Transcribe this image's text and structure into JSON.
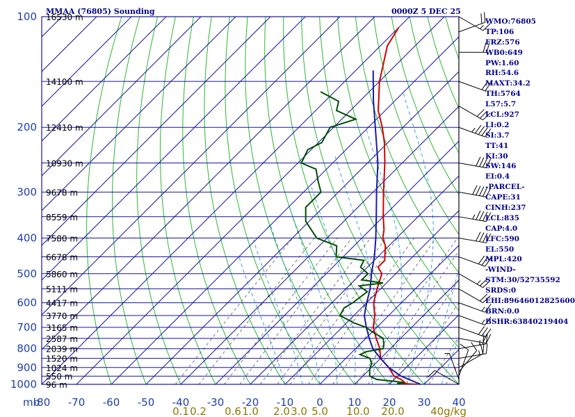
{
  "chart_data": {
    "type": "line",
    "title": "MMAA (76805) Sounding",
    "valid_time": "0000Z  5 DEC 25",
    "ylabel": "mb",
    "pressure_ticks": [
      100,
      200,
      300,
      400,
      500,
      600,
      700,
      800,
      900,
      1000
    ],
    "xlim": [
      -80,
      40
    ],
    "ylim": [
      1000,
      100
    ],
    "temperature_ticks": [
      "-80",
      "-70",
      "-60",
      "-50",
      "-40",
      "-30",
      "-20",
      "-10",
      "0",
      "10",
      "20",
      "30",
      "40"
    ],
    "mixing_ratio_ticks": [
      {
        "label": "0.1",
        "t": -40
      },
      {
        "label": "0.2",
        "t": -35
      },
      {
        "label": "0.6",
        "t": -25
      },
      {
        "label": "1.0",
        "t": -20
      },
      {
        "label": "2.0",
        "t": -11
      },
      {
        "label": "3.0",
        "t": -6
      },
      {
        "label": "5.0",
        "t": 0
      },
      {
        "label": "10.0",
        "t": 11
      },
      {
        "label": "20.0",
        "t": 21
      },
      {
        "label": "40g/kg",
        "t": 37
      }
    ],
    "height_labels": [
      {
        "text": "16530 m",
        "p": 100
      },
      {
        "text": "14100 m",
        "p": 150
      },
      {
        "text": "12410 m",
        "p": 200
      },
      {
        "text": "10930 m",
        "p": 250
      },
      {
        "text": "9678 m",
        "p": 300
      },
      {
        "text": "8559 m",
        "p": 350
      },
      {
        "text": "7580 m",
        "p": 400
      },
      {
        "text": "6678 m",
        "p": 450
      },
      {
        "text": "5860 m",
        "p": 500
      },
      {
        "text": "5111 m",
        "p": 550
      },
      {
        "text": "4417 m",
        "p": 600
      },
      {
        "text": "3770 m",
        "p": 650
      },
      {
        "text": "3165 m",
        "p": 700
      },
      {
        "text": "2587 m",
        "p": 750
      },
      {
        "text": "2039 m",
        "p": 800
      },
      {
        "text": "1520 m",
        "p": 850
      },
      {
        "text": "1024 m",
        "p": 900
      },
      {
        "text": "550 m",
        "p": 950
      },
      {
        "text": "96 m",
        "p": 1000
      }
    ],
    "series": [
      {
        "name": "",
        "color": "#cc0000",
        "points": [
          [
            28,
            1000
          ],
          [
            23,
            995
          ],
          [
            24,
            990
          ],
          [
            22,
            970
          ],
          [
            19,
            950
          ],
          [
            15,
            900
          ],
          [
            10,
            850
          ],
          [
            7,
            800
          ],
          [
            3,
            750
          ],
          [
            -1,
            700
          ],
          [
            -4,
            650
          ],
          [
            -8,
            600
          ],
          [
            -11,
            550
          ],
          [
            -14,
            500
          ],
          [
            -17,
            480
          ],
          [
            -17,
            460
          ],
          [
            -18,
            450
          ],
          [
            -21,
            420
          ],
          [
            -24,
            400
          ],
          [
            -26,
            380
          ],
          [
            -30,
            350
          ],
          [
            -37,
            300
          ],
          [
            -45,
            250
          ],
          [
            -51,
            220
          ],
          [
            -56,
            200
          ],
          [
            -62,
            180
          ],
          [
            -70,
            150
          ],
          [
            -78,
            120
          ],
          [
            -80,
            107
          ]
        ]
      },
      {
        "name": "",
        "color": "#1a1aa0",
        "points": [
          [
            29,
            1000
          ],
          [
            21,
            950
          ],
          [
            15,
            900
          ],
          [
            10,
            850
          ],
          [
            5,
            800
          ],
          [
            1,
            750
          ],
          [
            -3,
            700
          ],
          [
            -7,
            650
          ],
          [
            -10,
            600
          ],
          [
            -13,
            550
          ],
          [
            -17,
            500
          ],
          [
            -21,
            450
          ],
          [
            -26,
            400
          ],
          [
            -32,
            350
          ],
          [
            -39,
            300
          ],
          [
            -47,
            250
          ],
          [
            -58,
            200
          ],
          [
            -66,
            170
          ],
          [
            -75,
            140
          ]
        ]
      },
      {
        "name": "",
        "color": "#004d00",
        "points": [
          [
            23,
            1000
          ],
          [
            22,
            995
          ],
          [
            24,
            990
          ],
          [
            22,
            985
          ],
          [
            20,
            980
          ],
          [
            15,
            970
          ],
          [
            12,
            950
          ],
          [
            10,
            910
          ],
          [
            9,
            880
          ],
          [
            7,
            850
          ],
          [
            3,
            830
          ],
          [
            4,
            815
          ],
          [
            8,
            800
          ],
          [
            7,
            780
          ],
          [
            5,
            750
          ],
          [
            0,
            720
          ],
          [
            -3,
            700
          ],
          [
            -8,
            680
          ],
          [
            -14,
            650
          ],
          [
            -15,
            620
          ],
          [
            -14,
            600
          ],
          [
            -13,
            560
          ],
          [
            -17,
            540
          ],
          [
            -11,
            530
          ],
          [
            -18,
            520
          ],
          [
            -18,
            500
          ],
          [
            -22,
            480
          ],
          [
            -23,
            460
          ],
          [
            -32,
            450
          ],
          [
            -35,
            420
          ],
          [
            -43,
            400
          ],
          [
            -51,
            360
          ],
          [
            -55,
            330
          ],
          [
            -55,
            300
          ],
          [
            -59,
            280
          ],
          [
            -63,
            260
          ],
          [
            -69,
            250
          ],
          [
            -71,
            230
          ],
          [
            -69,
            220
          ],
          [
            -71,
            200
          ],
          [
            -66,
            190
          ],
          [
            -74,
            180
          ],
          [
            -76,
            170
          ],
          [
            -84,
            160
          ]
        ]
      }
    ],
    "wind_barbs": [
      {
        "p": 1000,
        "dir": 120,
        "spd": 10
      },
      {
        "p": 970,
        "dir": 160,
        "spd": 5
      },
      {
        "p": 950,
        "dir": 200,
        "spd": 10
      },
      {
        "p": 925,
        "dir": 220,
        "spd": 10
      },
      {
        "p": 900,
        "dir": 240,
        "spd": 15
      },
      {
        "p": 850,
        "dir": 260,
        "spd": 20
      },
      {
        "p": 800,
        "dir": 260,
        "spd": 25
      },
      {
        "p": 750,
        "dir": 280,
        "spd": 20
      },
      {
        "p": 700,
        "dir": 290,
        "spd": 30
      },
      {
        "p": 650,
        "dir": 290,
        "spd": 15
      },
      {
        "p": 600,
        "dir": 290,
        "spd": 15
      },
      {
        "p": 550,
        "dir": 300,
        "spd": 20
      },
      {
        "p": 500,
        "dir": 300,
        "spd": 25
      },
      {
        "p": 450,
        "dir": 290,
        "spd": 30
      },
      {
        "p": 400,
        "dir": 280,
        "spd": 40
      },
      {
        "p": 350,
        "dir": 280,
        "spd": 45
      },
      {
        "p": 300,
        "dir": 280,
        "spd": 50
      },
      {
        "p": 250,
        "dir": 280,
        "spd": 40
      },
      {
        "p": 200,
        "dir": 290,
        "spd": 45
      },
      {
        "p": 175,
        "dir": 300,
        "spd": 30
      },
      {
        "p": 150,
        "dir": 290,
        "spd": 20
      },
      {
        "p": 125,
        "dir": 270,
        "spd": 20
      },
      {
        "p": 110,
        "dir": 250,
        "spd": 20
      },
      {
        "p": 100,
        "dir": 300,
        "spd": 15
      }
    ]
  },
  "indices": [
    "WMO:76805",
    "TP:106",
    "FRZ:576",
    "WB0:649",
    "PW:1.60",
    "RH:54.6",
    "MAXT:34.2",
    "TH:5764",
    "L57:5.7",
    "LCL:927",
    "LI:0.2",
    "SI:3.7",
    "TT:41",
    "KI:30",
    "SW:146",
    "EI:0.4",
    "-PARCEL-",
    "CAPE:31",
    "CINH:237",
    "LCL:835",
    "CAP:4.0",
    "LFC:590",
    "EL:550",
    "MPL:420",
    "-WIND-",
    "STM:30/52735592",
    "SRDS:0",
    "EHI:89646012825600",
    "BRN:0.0",
    "BSHR:63840219404"
  ],
  "colors": {
    "isobar": "#1414a0",
    "isotherm": "#1414a0",
    "dry_adiabat": "#2db52d",
    "moist_adiabat": "#3fa0d8",
    "mixing_ratio": "#555555",
    "text": "#00008b"
  }
}
